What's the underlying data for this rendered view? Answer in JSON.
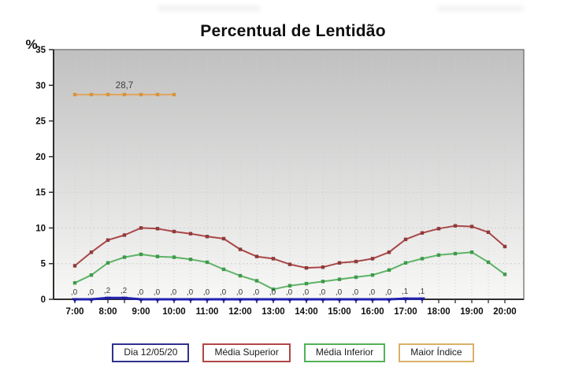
{
  "title": "Percentual de Lentidão",
  "colors": {
    "plot_bg_top": "#c1c0c0",
    "plot_bg_bottom": "#f8f8f7",
    "gridline": "#cfcfcf",
    "frame": "#6e6e6e",
    "axis": "#2f2f2f",
    "tick_text": "#101010",
    "point_label_text": "#3c3c3c"
  },
  "chart_data": {
    "type": "line",
    "title": "Percentual de Lentidão",
    "ylabel": "%",
    "ylim": [
      0,
      35
    ],
    "yticks": [
      0,
      5,
      10,
      15,
      20,
      25,
      30,
      35
    ],
    "x_interval_minutes": 30,
    "x_hour_labels": [
      "7:00",
      "8:00",
      "9:00",
      "10:00",
      "11:00",
      "12:00",
      "13:00",
      "14:00",
      "15:00",
      "16:00",
      "17:00",
      "18:00",
      "19:00",
      "20:00"
    ],
    "grid": true,
    "legend_position": "bottom",
    "series": [
      {
        "name": "Maior Índice",
        "color": "#e0a45c",
        "marker_color": "#d6933e",
        "marker": "square",
        "line_width": 2,
        "values": [
          28.7,
          28.7,
          28.7,
          28.7,
          28.7,
          28.7,
          28.7,
          null,
          null,
          null,
          null,
          null,
          null,
          null,
          null,
          null,
          null,
          null,
          null,
          null,
          null,
          null,
          null,
          null,
          null,
          null,
          null
        ],
        "annotation": {
          "text": "28,7",
          "x_index": 3,
          "value": 28.7
        }
      },
      {
        "name": "Média Superior",
        "color": "#a94747",
        "marker_color": "#8e3a3a",
        "marker": "square",
        "line_width": 2,
        "values": [
          4.7,
          6.6,
          8.3,
          9.0,
          10.0,
          9.9,
          9.5,
          9.2,
          8.8,
          8.5,
          7.0,
          6.0,
          5.7,
          4.9,
          4.4,
          4.5,
          5.1,
          5.3,
          5.7,
          6.6,
          8.4,
          9.3,
          9.9,
          10.3,
          10.2,
          9.4,
          7.4
        ]
      },
      {
        "name": "Média Inferior",
        "color": "#5eb366",
        "marker_color": "#3e9a49",
        "marker": "square",
        "line_width": 2,
        "values": [
          2.3,
          3.4,
          5.1,
          5.9,
          6.3,
          6.0,
          5.9,
          5.6,
          5.2,
          4.2,
          3.3,
          2.6,
          1.4,
          1.9,
          2.2,
          2.5,
          2.8,
          3.1,
          3.4,
          4.1,
          5.1,
          5.7,
          6.2,
          6.4,
          6.6,
          5.2,
          3.5
        ]
      },
      {
        "name": "Dia 12/05/20",
        "color": "#2323b4",
        "marker_color": "#1c1c9e",
        "marker": "triangle-down",
        "line_width": 3,
        "values": [
          0,
          0,
          0.2,
          0.2,
          0,
          0,
          0,
          0,
          0,
          0,
          0,
          0,
          0,
          0,
          0,
          0,
          0,
          0,
          0,
          0,
          0.1,
          0.1,
          null,
          null,
          null,
          null,
          null
        ],
        "point_labels": [
          ",0",
          ",0",
          ",2",
          ",2",
          ",0",
          ",0",
          ",0",
          ",0",
          ",0",
          ",0",
          ",0",
          ",0",
          ",0",
          ",0",
          ",0",
          ",0",
          ",0",
          ",0",
          ",0",
          ",0",
          ",1",
          ",1",
          null,
          null,
          null,
          null,
          null
        ]
      }
    ]
  },
  "legend": {
    "items": [
      {
        "label": "Dia 12/05/20",
        "border_color": "#31318c"
      },
      {
        "label": "Média Superior",
        "border_color": "#b24646"
      },
      {
        "label": "Média Inferior",
        "border_color": "#52b258"
      },
      {
        "label": "Maior Índice",
        "border_color": "#d9b169"
      }
    ]
  }
}
